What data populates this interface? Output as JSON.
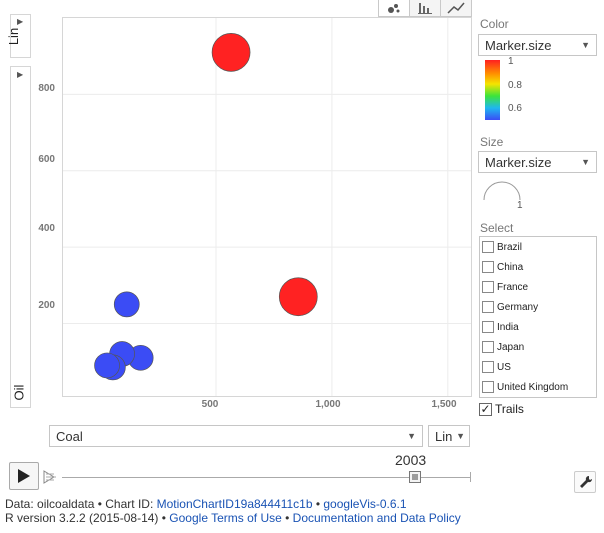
{
  "chart": {
    "y_scale": "Lin",
    "y_variable": "Oil",
    "x_variable": "Coal",
    "x_scale": "Lin",
    "y_ticks": [
      "800",
      "600",
      "400",
      "200"
    ],
    "x_ticks": [
      "500",
      "1,000",
      "1,500"
    ],
    "year": "2003"
  },
  "chart_data": {
    "type": "scatter",
    "xlabel": "Coal",
    "ylabel": "Oil",
    "xlim": [
      -160,
      1600
    ],
    "ylim": [
      10,
      1000
    ],
    "x_ticks": [
      500,
      1000,
      1500
    ],
    "y_ticks": [
      200,
      400,
      600,
      800
    ],
    "size_variable": "Marker.size",
    "color_variable": "Marker.size",
    "points": [
      {
        "x": 565,
        "y": 910,
        "size": 1,
        "color": 1
      },
      {
        "x": 855,
        "y": 270,
        "size": 1,
        "color": 1
      },
      {
        "x": 115,
        "y": 250,
        "size": 0.6,
        "color": 0.6
      },
      {
        "x": 175,
        "y": 110,
        "size": 0.6,
        "color": 0.6
      },
      {
        "x": 95,
        "y": 120,
        "size": 0.6,
        "color": 0.6
      },
      {
        "x": 55,
        "y": 85,
        "size": 0.6,
        "color": 0.6
      },
      {
        "x": 30,
        "y": 90,
        "size": 0.6,
        "color": 0.6
      }
    ]
  },
  "panel": {
    "color_label": "Color",
    "color_select": "Marker.size",
    "color_legend": [
      "1",
      "0.8",
      "0.6"
    ],
    "size_label": "Size",
    "size_select": "Marker.size",
    "size_legend": "1",
    "select_label": "Select",
    "countries": [
      "Brazil",
      "China",
      "France",
      "Germany",
      "India",
      "Japan",
      "US",
      "United Kingdom"
    ],
    "trails_label": "Trails",
    "trails_checked": true
  },
  "colors": {
    "red": "#ff2222",
    "blue": "#3b4cf5",
    "link": "#1a53b4"
  },
  "footer": {
    "line1_prefix": "Data: oilcoaldata • Chart ID: ",
    "chart_id": "MotionChartID19a844411c1b",
    "sep1": " • ",
    "version_link": "googleVis-0.6.1",
    "line2_prefix": "R version 3.2.2 (2015-08-14) • ",
    "terms_link": "Google Terms of Use",
    "sep2": " • ",
    "policy_link": "Documentation and Data Policy"
  }
}
